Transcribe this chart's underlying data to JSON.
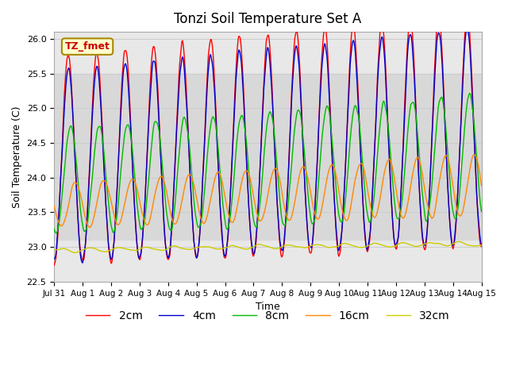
{
  "title": "Tonzi Soil Temperature Set A",
  "xlabel": "Time",
  "ylabel": "Soil Temperature (C)",
  "ylim": [
    22.5,
    26.1
  ],
  "xlim_days": [
    0,
    15
  ],
  "xtick_labels": [
    "Jul 31",
    "Aug 1",
    "Aug 2",
    "Aug 3",
    "Aug 4",
    "Aug 5",
    "Aug 6",
    "Aug 7",
    "Aug 8",
    "Aug 9",
    "Aug 10",
    "Aug 11",
    "Aug 12",
    "Aug 13",
    "Aug 14",
    "Aug 15"
  ],
  "line_colors": [
    "#ff0000",
    "#0000cc",
    "#00bb00",
    "#ff8800",
    "#cccc00"
  ],
  "line_labels": [
    "2cm",
    "4cm",
    "8cm",
    "16cm",
    "32cm"
  ],
  "line_widths": [
    1.0,
    1.0,
    1.0,
    1.0,
    1.0
  ],
  "annotation_text": "TZ_fmet",
  "shaded_band_ymin": 23.1,
  "shaded_band_ymax": 25.5,
  "shaded_band_color": "#d8d8d8",
  "plot_bg_color": "#e8e8e8",
  "background_color": "#ffffff",
  "title_fontsize": 12,
  "axis_fontsize": 9,
  "legend_fontsize": 10
}
